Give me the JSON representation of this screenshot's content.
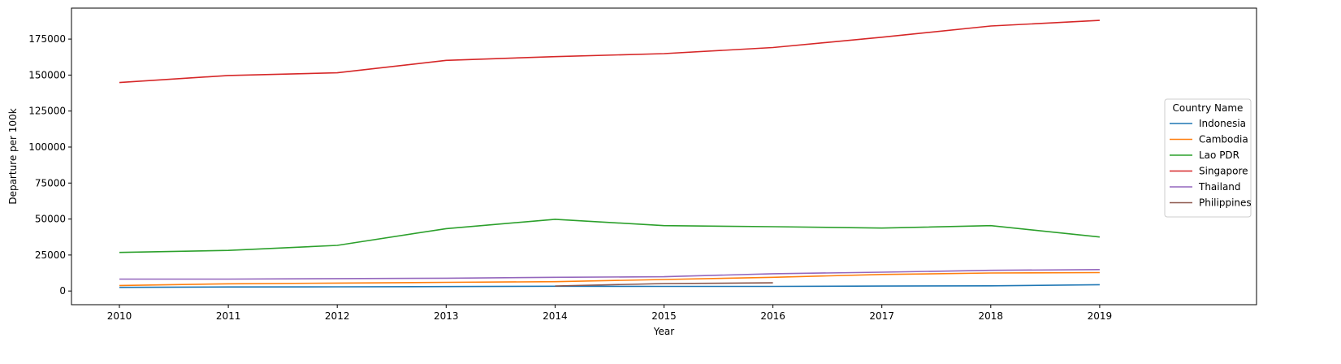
{
  "chart_data": {
    "type": "line",
    "xlabel": "Year",
    "ylabel": "Departure per 100k",
    "x": [
      2010,
      2011,
      2012,
      2013,
      2014,
      2015,
      2016,
      2017,
      2018,
      2019
    ],
    "xlim": [
      2009.56,
      2020.44
    ],
    "ylim": [
      -9500,
      196500
    ],
    "yticks": [
      0,
      25000,
      50000,
      75000,
      100000,
      125000,
      150000,
      175000
    ],
    "legend": {
      "title": "Country Name",
      "placement": "center-right"
    },
    "grid": false,
    "series": [
      {
        "name": "Indonesia",
        "color": "#1f77b4",
        "x": [
          2010,
          2011,
          2012,
          2013,
          2014,
          2015,
          2016,
          2017,
          2018,
          2019
        ],
        "values": [
          2500,
          2800,
          2900,
          3100,
          3300,
          3200,
          3200,
          3400,
          3600,
          4400
        ]
      },
      {
        "name": "Cambodia",
        "color": "#ff7f0e",
        "x": [
          2010,
          2011,
          2012,
          2013,
          2014,
          2015,
          2016,
          2017,
          2018,
          2019
        ],
        "values": [
          3800,
          5000,
          5500,
          6000,
          6500,
          8000,
          9500,
          11500,
          12500,
          12800
        ]
      },
      {
        "name": "Lao PDR",
        "color": "#2ca02c",
        "x": [
          2010,
          2011,
          2012,
          2013,
          2014,
          2015,
          2016,
          2017,
          2018,
          2019
        ],
        "values": [
          26800,
          28200,
          31700,
          43300,
          49800,
          45400,
          44700,
          43700,
          45400,
          37500
        ]
      },
      {
        "name": "Singapore",
        "color": "#d62728",
        "x": [
          2010,
          2011,
          2012,
          2013,
          2014,
          2015,
          2016,
          2017,
          2018,
          2019
        ],
        "values": [
          144800,
          149700,
          151600,
          160200,
          162800,
          164900,
          169100,
          176300,
          184100,
          188000
        ]
      },
      {
        "name": "Thailand",
        "color": "#9467bd",
        "x": [
          2010,
          2011,
          2012,
          2013,
          2014,
          2015,
          2016,
          2017,
          2018,
          2019
        ],
        "values": [
          8300,
          8300,
          8600,
          8900,
          9500,
          9900,
          12000,
          13100,
          14400,
          14900
        ]
      },
      {
        "name": "Philippines",
        "color": "#8c564b",
        "x": [
          2014,
          2015,
          2016
        ],
        "values": [
          3500,
          5200,
          5700
        ]
      }
    ]
  }
}
